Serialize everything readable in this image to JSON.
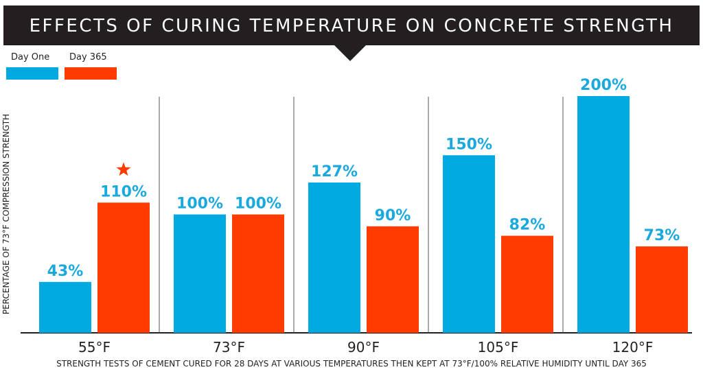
{
  "chart_data": {
    "type": "bar",
    "title": "EFFECTS OF CURING TEMPERATURE ON CONCRETE STRENGTH",
    "xlabel": "STRENGTH TESTS OF CEMENT CURED FOR 28 DAYS AT VARIOUS TEMPERATURES THEN KEPT AT 73°F/100% RELATIVE HUMIDITY UNTIL DAY 365",
    "ylabel": "PERCENTAGE OF 73°F COMPRESSION STRENGTH",
    "categories": [
      "55°F",
      "73°F",
      "90°F",
      "105°F",
      "120°F"
    ],
    "series": [
      {
        "name": "Day One",
        "color": "#00a9e0",
        "values": [
          43,
          100,
          127,
          150,
          200
        ],
        "labels": [
          "43%",
          "100%",
          "127%",
          "150%",
          "200%"
        ]
      },
      {
        "name": "Day 365",
        "color": "#ff3c00",
        "values": [
          110,
          100,
          90,
          82,
          73
        ],
        "labels": [
          "110%",
          "100%",
          "90%",
          "82%",
          "73%"
        ]
      }
    ],
    "ylim": [
      0,
      200
    ],
    "grid": false,
    "legend": "top-left",
    "annotations": [
      {
        "category": "55°F",
        "series": "Day 365",
        "marker": "star-icon",
        "color": "#ff3c00"
      }
    ],
    "label_color": "#1ba9dd",
    "axis_color": "#231f20"
  }
}
